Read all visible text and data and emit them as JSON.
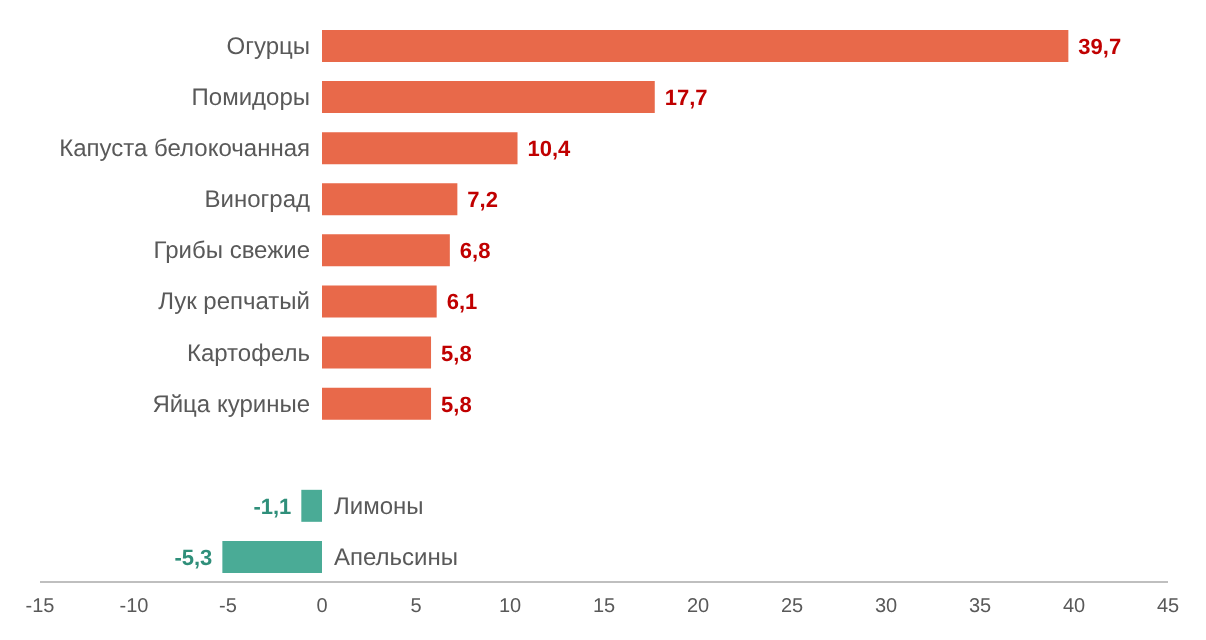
{
  "chart_data": {
    "type": "bar",
    "orientation": "horizontal",
    "categories": [
      "Огурцы",
      "Помидоры",
      "Капуста белокочанная",
      "Виноград",
      "Грибы свежие",
      "Лук репчатый",
      "Картофель",
      "Яйца куриные",
      null,
      "Лимоны",
      "Апельсины"
    ],
    "values": [
      39.7,
      17.7,
      10.4,
      7.2,
      6.8,
      6.1,
      5.8,
      5.8,
      null,
      -1.1,
      -5.3
    ],
    "value_labels": [
      "39,7",
      "17,7",
      "10,4",
      "7,2",
      "6,8",
      "6,1",
      "5,8",
      "5,8",
      null,
      "-1,1",
      "-5,3"
    ],
    "colors": [
      "#e8694a",
      "#e8694a",
      "#e8694a",
      "#e8694a",
      "#e8694a",
      "#e8694a",
      "#e8694a",
      "#e8694a",
      null,
      "#4aab96",
      "#4aab96"
    ],
    "xlim": [
      -15,
      45
    ],
    "xticks": [
      -15,
      -10,
      -5,
      0,
      5,
      10,
      15,
      20,
      25,
      30,
      35,
      40,
      45
    ],
    "grid": false
  }
}
